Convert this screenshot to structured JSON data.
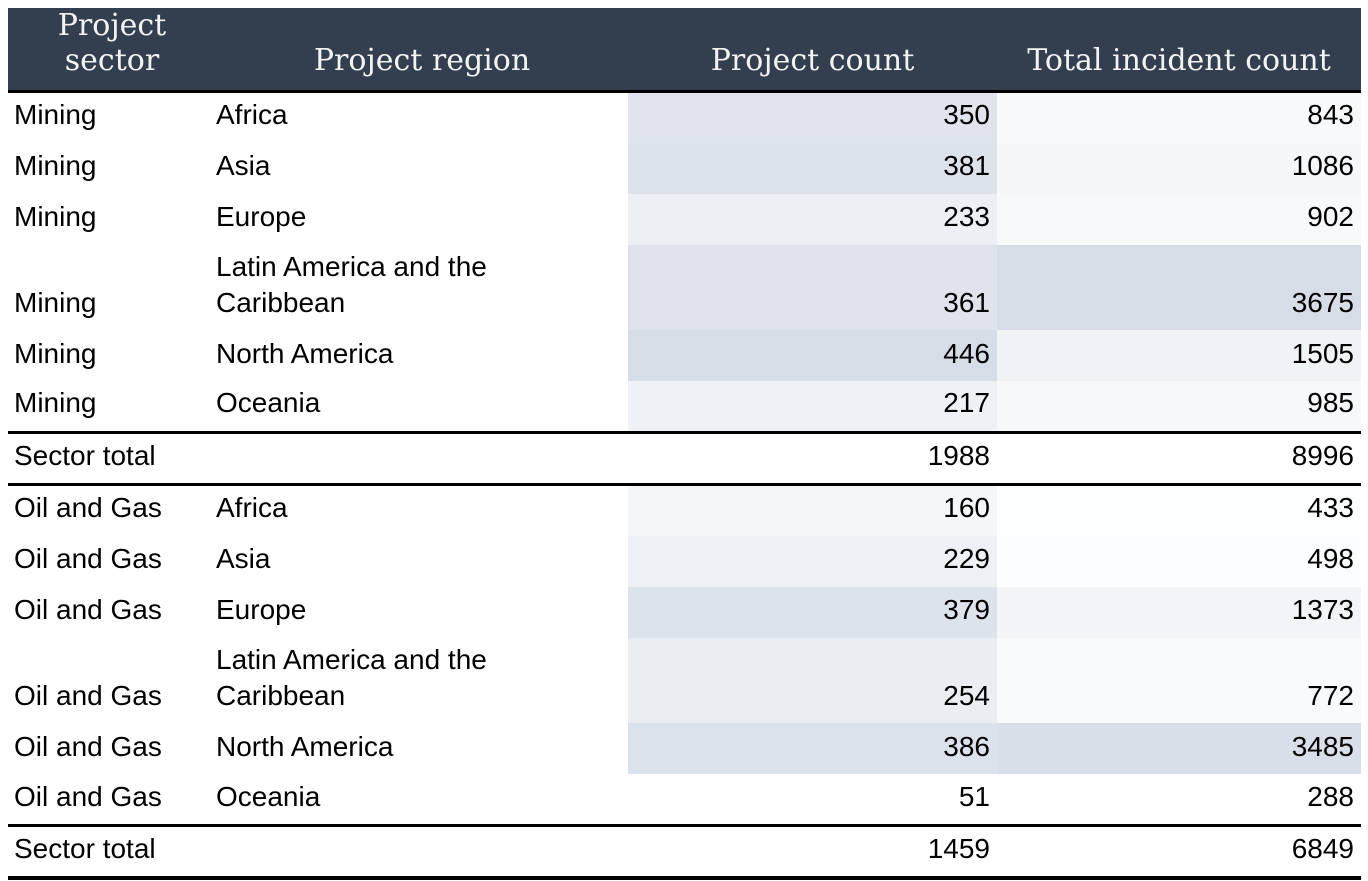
{
  "chart_data": {
    "type": "table",
    "columns": [
      "Project sector",
      "Project region",
      "Project count",
      "Total incident count"
    ],
    "sections": [
      {
        "rows": [
          {
            "sector": "Mining",
            "region": "Africa",
            "project_count": 350,
            "incident_count": 843
          },
          {
            "sector": "Mining",
            "region": "Asia",
            "project_count": 381,
            "incident_count": 1086
          },
          {
            "sector": "Mining",
            "region": "Europe",
            "project_count": 233,
            "incident_count": 902
          },
          {
            "sector": "Mining",
            "region": "Latin America and the Caribbean",
            "project_count": 361,
            "incident_count": 3675
          },
          {
            "sector": "Mining",
            "region": "North America",
            "project_count": 446,
            "incident_count": 1505
          },
          {
            "sector": "Mining",
            "region": "Oceania",
            "project_count": 217,
            "incident_count": 985
          }
        ],
        "total": {
          "label": "Sector total",
          "project_count": 1988,
          "incident_count": 8996
        }
      },
      {
        "rows": [
          {
            "sector": "Oil and Gas",
            "region": "Africa",
            "project_count": 160,
            "incident_count": 433
          },
          {
            "sector": "Oil and Gas",
            "region": "Asia",
            "project_count": 229,
            "incident_count": 498
          },
          {
            "sector": "Oil and Gas",
            "region": "Europe",
            "project_count": 379,
            "incident_count": 1373
          },
          {
            "sector": "Oil and Gas",
            "region": "Latin America and the Caribbean",
            "project_count": 254,
            "incident_count": 772
          },
          {
            "sector": "Oil and Gas",
            "region": "North America",
            "project_count": 386,
            "incident_count": 3485
          },
          {
            "sector": "Oil and Gas",
            "region": "Oceania",
            "project_count": 51,
            "incident_count": 288
          }
        ],
        "total": {
          "label": "Sector total",
          "project_count": 1459,
          "incident_count": 6849
        }
      }
    ],
    "layout": {
      "heat_columns": [
        "project_count",
        "incident_count"
      ],
      "heat_scale": "per-column, min value = white, max value = heat_max",
      "number_align": "right",
      "grid": "off"
    }
  },
  "colors": {
    "header_bg": "#333E4F",
    "header_text": "#F2F3F4",
    "body_text": "#000000",
    "border": "#000000",
    "heat_min": "#FFFFFF",
    "heat_max": "#D6DDE7"
  }
}
